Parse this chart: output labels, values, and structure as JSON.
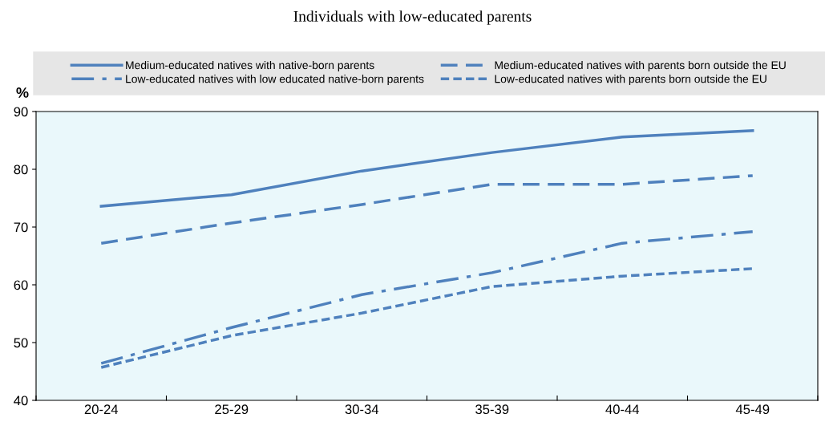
{
  "chart_data": {
    "type": "line",
    "title": "Individuals with low-educated parents",
    "ylabel": "%",
    "categories": [
      "20-24",
      "25-29",
      "30-34",
      "35-39",
      "40-44",
      "45-49"
    ],
    "ylim": [
      40,
      90
    ],
    "yticks": [
      40,
      50,
      60,
      70,
      80,
      90
    ],
    "grid": false,
    "legend": "top",
    "marker": "none",
    "series": [
      {
        "name": "Medium-educated natives with native-born parents",
        "color": "#4f81bd",
        "line_style": "solid",
        "values": [
          73.6,
          75.6,
          79.7,
          82.9,
          85.6,
          86.7
        ]
      },
      {
        "name": "Medium-educated natives with parents born outside the EU",
        "color": "#4f81bd",
        "line_style": "dashed",
        "values": [
          67.2,
          70.7,
          73.9,
          77.4,
          77.4,
          78.9
        ]
      },
      {
        "name": "Low-educated natives with low educated native-born parents",
        "color": "#4f81bd",
        "line_style": "dashdot",
        "values": [
          46.4,
          52.6,
          58.3,
          62.1,
          67.2,
          69.2
        ]
      },
      {
        "name": "Low-educated natives with parents born outside the EU",
        "color": "#4f81bd",
        "line_style": "dotted",
        "values": [
          45.7,
          51.2,
          55.1,
          59.7,
          61.5,
          62.8
        ]
      }
    ]
  }
}
